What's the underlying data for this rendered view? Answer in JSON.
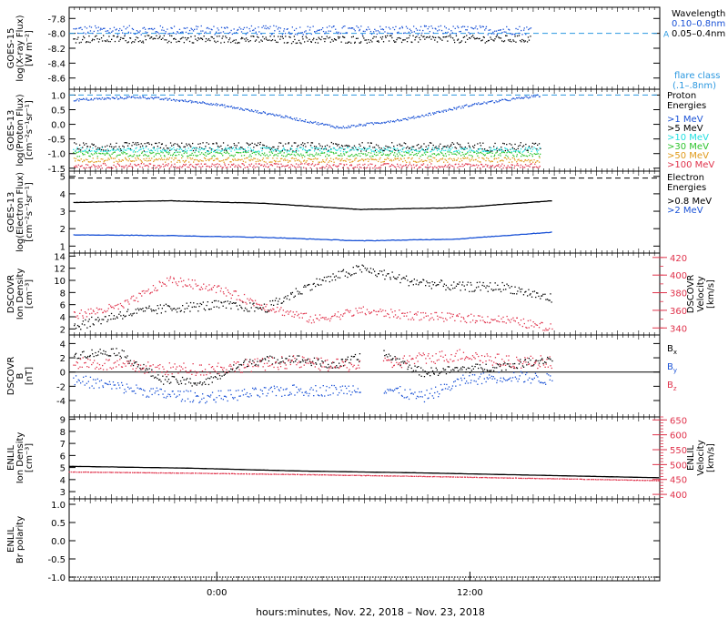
{
  "colors": {
    "black": "#000000",
    "blue": "#1a52d6",
    "light_blue": "#2b98e0",
    "cyan": "#20e0e0",
    "green": "#2ec42e",
    "orange": "#e09a1a",
    "red": "#e0324b"
  },
  "footer": {
    "xlabel": "hours:minutes, Nov. 22, 2018 – Nov. 23, 2018"
  },
  "chart_data": [
    {
      "id": "goes15-xray",
      "type": "scatter",
      "ylabel": [
        "GOES-15",
        "log(X-ray Flux)",
        "[W m⁻²]"
      ],
      "ylim": [
        -8.75,
        -7.65
      ],
      "yticks": [
        -7.8,
        -8.0,
        -8.2,
        -8.4,
        -8.6
      ],
      "ytick_labels": [
        "-7.8",
        "-8.0",
        "-8.2",
        "-8.4",
        "-8.6"
      ],
      "x_range_hours": [
        -7.0,
        21.0
      ],
      "reference_line": {
        "y": -8.0,
        "label": "A"
      },
      "legend": {
        "title": "Wavelength",
        "items": [
          "0.10–0.8nm",
          "0.05–0.4nm"
        ],
        "note": [
          "flare class",
          "(.1–.8nm)"
        ]
      },
      "series": [
        {
          "name": "0.10–0.8nm",
          "x_start": -6.8,
          "x_end": 14.9,
          "level": [
            -7.95,
            -7.95,
            -7.95,
            -7.95,
            -7.95
          ],
          "scatter": 0.06
        },
        {
          "name": "0.05–0.4nm",
          "x_start": -6.8,
          "x_end": 14.9,
          "level": [
            -8.07,
            -8.07,
            -8.08,
            -8.07,
            -8.07
          ],
          "scatter": 0.05
        }
      ]
    },
    {
      "id": "goes13-proton",
      "type": "scatter",
      "ylabel": [
        "GOES-13",
        "log(Proton Flux)",
        "[cm⁻²s⁻¹sr⁻¹]"
      ],
      "ylim": [
        -1.6,
        1.2
      ],
      "yticks": [
        1.0,
        0.5,
        0.0,
        -0.5,
        -1.0,
        -1.5
      ],
      "ytick_labels": [
        "1.0",
        "0.5",
        "0.0",
        "-0.5",
        "-1.0",
        "-1.5"
      ],
      "x_range_hours": [
        -7.0,
        21.0
      ],
      "reference_line": {
        "y": 1.0
      },
      "legend": {
        "title": "Proton Energies",
        "items": [
          ">1 MeV",
          ">5 MeV",
          ">10 MeV",
          ">30 MeV",
          ">50 MeV",
          ">100 MeV"
        ]
      },
      "series": [
        {
          "name": ">1 MeV",
          "x_start": -6.8,
          "x_end": 15.3,
          "level": [
            0.85,
            0.95,
            0.75,
            0.35,
            -0.1,
            0.2,
            0.7,
            1.0
          ],
          "scatter": 0.04
        },
        {
          "name": ">5 MeV",
          "x_start": -6.8,
          "x_end": 15.3,
          "level": [
            -0.75,
            -0.75,
            -0.75,
            -0.75,
            -0.75
          ],
          "scatter": 0.15
        },
        {
          "name": ">10 MeV",
          "x_start": -6.8,
          "x_end": 15.3,
          "level": [
            -0.85,
            -0.85,
            -0.85,
            -0.85,
            -0.85
          ],
          "scatter": 0.08
        },
        {
          "name": ">30 MeV",
          "x_start": -6.8,
          "x_end": 15.3,
          "level": [
            -1.0,
            -1.0,
            -1.0,
            -1.0,
            -1.0
          ],
          "scatter": 0.08
        },
        {
          "name": ">50 MeV",
          "x_start": -6.8,
          "x_end": 15.3,
          "level": [
            -1.2,
            -1.2,
            -1.2,
            -1.2,
            -1.2
          ],
          "scatter": 0.08
        },
        {
          "name": ">100 MeV",
          "x_start": -6.8,
          "x_end": 15.3,
          "level": [
            -1.4,
            -1.4,
            -1.4,
            -1.4,
            -1.4
          ],
          "scatter": 0.08
        }
      ]
    },
    {
      "id": "goes13-electron",
      "type": "line",
      "ylabel": [
        "GOES-13",
        "log(Electron Flux)",
        "[cm⁻²s⁻¹sr⁻¹]"
      ],
      "ylim": [
        0.6,
        5.3
      ],
      "yticks": [
        5,
        4,
        3,
        2,
        1
      ],
      "ytick_labels": [
        "5",
        "4",
        "3",
        "2",
        "1"
      ],
      "x_range_hours": [
        -7.0,
        21.0
      ],
      "reference_line": {
        "y": 4.9
      },
      "legend": {
        "title": "Electron Energies",
        "items": [
          ">0.8 MeV",
          ">2 MeV"
        ]
      },
      "series": [
        {
          "name": ">0.8 MeV",
          "x_start": -6.8,
          "x_end": 15.9,
          "level": [
            3.5,
            3.6,
            3.45,
            3.1,
            3.2,
            3.6
          ],
          "scatter": 0.02
        },
        {
          "name": ">2 MeV",
          "x_start": -6.8,
          "x_end": 15.9,
          "level": [
            1.65,
            1.6,
            1.5,
            1.3,
            1.4,
            1.8
          ],
          "scatter": 0.03
        }
      ]
    },
    {
      "id": "dscovr-density-velocity",
      "type": "scatter",
      "ylabel": [
        "DSCOVR",
        "Ion Density",
        "[cm⁻³]"
      ],
      "ylim": [
        1.0,
        14.5
      ],
      "yticks": [
        14,
        12,
        10,
        8,
        6,
        4,
        2
      ],
      "ytick_labels": [
        "14",
        "12",
        "10",
        "8",
        "6",
        "4",
        "2"
      ],
      "y2label": [
        "DSCOVR",
        "Velocity",
        "[km/s]"
      ],
      "y2lim": [
        332,
        425
      ],
      "y2ticks": [
        420,
        400,
        380,
        360,
        340
      ],
      "y2tick_labels": [
        "420",
        "400",
        "380",
        "360",
        "340"
      ],
      "x_range_hours": [
        -7.0,
        21.0
      ],
      "series": [
        {
          "name": "Ion Density",
          "x_start": -6.8,
          "x_end": 15.9,
          "level": [
            2.5,
            4.5,
            5.5,
            6.0,
            5.5,
            9.5,
            12.0,
            10.0,
            9.0,
            9.0,
            7.0
          ],
          "scatter": 0.8
        },
        {
          "name": "Velocity",
          "x_start": -6.8,
          "x_end": 15.9,
          "level": [
            355,
            365,
            395,
            385,
            365,
            350,
            360,
            355,
            352,
            350,
            340
          ],
          "scatter": 5
        }
      ]
    },
    {
      "id": "dscovr-magnetic",
      "type": "scatter",
      "ylabel": [
        "DSCOVR",
        "B",
        "[nT]"
      ],
      "ylim": [
        -6.3,
        5.2
      ],
      "yticks": [
        4,
        2,
        0,
        -2,
        -4
      ],
      "ytick_labels": [
        "4",
        "2",
        "0",
        "-2",
        "-4"
      ],
      "x_range_hours": [
        -7.0,
        21.0
      ],
      "zero_line": 0,
      "legend": {
        "items": [
          "Bx",
          "By",
          "Bz"
        ]
      },
      "series": [
        {
          "name": "Bx",
          "x_start": -6.8,
          "x_end": 15.9,
          "level": [
            2.5,
            3.0,
            -1.0,
            -1.5,
            1.5,
            2.0,
            1.0,
            3.0,
            0.0,
            0.5,
            1.0,
            2.0
          ],
          "scatter": 0.6
        },
        {
          "name": "By",
          "x_start": -6.8,
          "x_end": 15.9,
          "level": [
            -1.0,
            -2.0,
            -3.0,
            -3.5,
            -3.0,
            -2.5,
            -2.5,
            -2.0,
            -3.5,
            -1.0,
            -0.5,
            -1.0
          ],
          "scatter": 0.8
        },
        {
          "name": "Bz",
          "x_start": -6.8,
          "x_end": 15.9,
          "level": [
            1.5,
            1.0,
            0.5,
            0.5,
            1.0,
            1.5,
            1.0,
            1.0,
            2.0,
            2.5,
            1.5,
            1.5
          ],
          "scatter": 0.9
        }
      ]
    },
    {
      "id": "enlil-density-velocity",
      "type": "line",
      "ylabel": [
        "ENLIL",
        "Ion Density",
        "[cm⁻³]"
      ],
      "ylim": [
        2.4,
        9.2
      ],
      "yticks": [
        9,
        8,
        7,
        6,
        5,
        4,
        3
      ],
      "ytick_labels": [
        "9",
        "8",
        "7",
        "6",
        "5",
        "4",
        "3"
      ],
      "y2label": [
        "ENLIL",
        "Velocity",
        "[km/s]"
      ],
      "y2lim": [
        385,
        660
      ],
      "y2ticks": [
        650,
        600,
        550,
        500,
        450,
        400
      ],
      "y2tick_labels": [
        "650",
        "600",
        "550",
        "500",
        "450",
        "400"
      ],
      "x_range_hours": [
        -7.0,
        21.0
      ],
      "series": [
        {
          "name": "Ion Density",
          "x_start": -7.0,
          "x_end": 21.0,
          "level": [
            5.1,
            4.95,
            4.7,
            4.55,
            4.35,
            4.15
          ],
          "scatter": 0.01
        },
        {
          "name": "Velocity",
          "x_start": -7.0,
          "x_end": 21.0,
          "level": [
            477,
            473,
            468,
            462,
            455,
            448
          ],
          "scatter": 0.5
        }
      ]
    },
    {
      "id": "enlil-polarity",
      "type": "line",
      "ylabel": [
        "ENLIL",
        "Br polarity"
      ],
      "ylim": [
        -1.1,
        1.15
      ],
      "yticks": [
        1.0,
        0.5,
        0.0,
        -0.5,
        -1.0
      ],
      "ytick_labels": [
        "1.0",
        "0.5",
        "0.0",
        "-0.5",
        "-1.0"
      ],
      "x_range_hours": [
        -7.0,
        21.0
      ],
      "xticks": [
        0,
        12
      ],
      "xtick_labels": [
        "0:00",
        "12:00"
      ],
      "series": [
        {
          "name": "Br polarity",
          "x_start": -7.0,
          "x_end": 21.0,
          "level": [
            -1.0,
            -1.0
          ],
          "scatter": 0
        }
      ]
    }
  ]
}
